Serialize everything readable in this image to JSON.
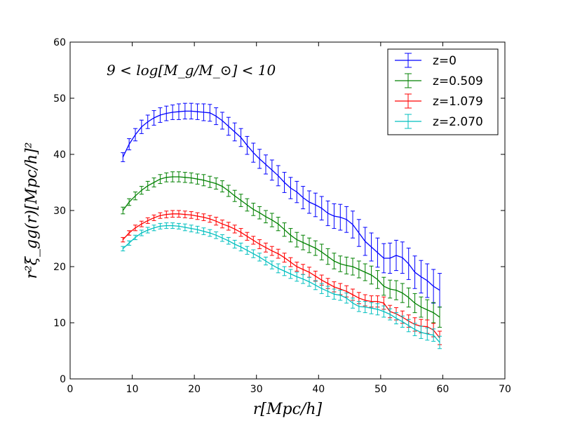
{
  "chart_data": {
    "type": "line",
    "annotation": "9 < log[M_g/M_⊙] < 10",
    "xlabel": "r[Mpc/h]",
    "ylabel": "r²ξ_gg(r)[Mpc/h]²",
    "xlim": [
      0,
      70
    ],
    "ylim": [
      0,
      60
    ],
    "xticks": [
      0,
      10,
      20,
      30,
      40,
      50,
      60,
      70
    ],
    "yticks": [
      0,
      10,
      20,
      30,
      40,
      50,
      60
    ],
    "grid": false,
    "legend_position": "top-right",
    "x": [
      8.5,
      9.5,
      10.5,
      11.5,
      12.5,
      13.5,
      14.5,
      15.5,
      16.5,
      17.5,
      18.5,
      19.5,
      20.5,
      21.5,
      22.5,
      23.5,
      24.5,
      25.5,
      26.5,
      27.5,
      28.5,
      29.5,
      30.5,
      31.5,
      32.5,
      33.5,
      34.5,
      35.5,
      36.5,
      37.5,
      38.5,
      39.5,
      40.5,
      41.5,
      42.5,
      43.5,
      44.5,
      45.5,
      46.5,
      47.5,
      48.5,
      49.5,
      50.5,
      51.5,
      52.5,
      53.5,
      54.5,
      55.5,
      56.5,
      57.5,
      58.5,
      59.5
    ],
    "series": [
      {
        "name": "z=0",
        "color": "#0000ff",
        "values": [
          39.5,
          41.8,
          43.5,
          44.9,
          45.8,
          46.5,
          47.0,
          47.3,
          47.5,
          47.6,
          47.7,
          47.7,
          47.6,
          47.5,
          47.4,
          46.8,
          46.0,
          45.0,
          44.0,
          43.0,
          41.6,
          40.3,
          39.2,
          38.2,
          37.2,
          36.2,
          35.0,
          34.0,
          33.3,
          32.3,
          31.5,
          31.0,
          30.4,
          29.5,
          29.0,
          28.8,
          28.4,
          27.5,
          26.0,
          24.5,
          23.5,
          22.5,
          21.5,
          21.5,
          22.0,
          21.6,
          20.5,
          19.0,
          18.2,
          17.5,
          16.5,
          15.8
        ],
        "errors": [
          0.8,
          1.0,
          1.1,
          1.2,
          1.2,
          1.3,
          1.3,
          1.3,
          1.3,
          1.4,
          1.4,
          1.4,
          1.4,
          1.5,
          1.5,
          1.5,
          1.5,
          1.6,
          1.6,
          1.6,
          1.6,
          1.7,
          1.7,
          1.7,
          1.8,
          1.8,
          1.8,
          1.9,
          1.9,
          2.0,
          2.0,
          2.1,
          2.1,
          2.2,
          2.2,
          2.3,
          2.3,
          2.4,
          2.4,
          2.5,
          2.5,
          2.6,
          2.6,
          2.7,
          2.7,
          2.8,
          2.8,
          2.9,
          2.9,
          3.0,
          3.0,
          3.0
        ]
      },
      {
        "name": "z=0.509",
        "color": "#008000",
        "values": [
          30.0,
          31.5,
          32.6,
          33.6,
          34.4,
          35.0,
          35.6,
          35.9,
          36.0,
          36.0,
          35.9,
          35.8,
          35.6,
          35.4,
          35.1,
          34.8,
          34.3,
          33.5,
          32.6,
          31.8,
          31.0,
          30.2,
          29.6,
          28.9,
          28.3,
          27.6,
          26.6,
          25.6,
          24.8,
          24.3,
          23.8,
          23.3,
          22.6,
          21.8,
          21.0,
          20.5,
          20.2,
          20.0,
          19.5,
          19.0,
          18.5,
          17.7,
          16.5,
          16.0,
          15.8,
          15.3,
          14.5,
          13.5,
          12.8,
          12.3,
          11.8,
          11.0
        ],
        "errors": [
          0.6,
          0.6,
          0.7,
          0.7,
          0.8,
          0.8,
          0.8,
          0.8,
          0.9,
          0.9,
          0.9,
          0.9,
          0.9,
          1.0,
          1.0,
          1.0,
          1.0,
          1.0,
          1.0,
          1.1,
          1.1,
          1.1,
          1.1,
          1.1,
          1.2,
          1.2,
          1.2,
          1.2,
          1.3,
          1.3,
          1.3,
          1.3,
          1.4,
          1.4,
          1.4,
          1.4,
          1.5,
          1.5,
          1.5,
          1.5,
          1.6,
          1.6,
          1.6,
          1.6,
          1.7,
          1.7,
          1.7,
          1.7,
          1.8,
          1.8,
          1.8,
          1.8
        ]
      },
      {
        "name": "z=1.079",
        "color": "#ff0000",
        "values": [
          24.8,
          26.0,
          26.9,
          27.6,
          28.2,
          28.7,
          29.1,
          29.3,
          29.4,
          29.4,
          29.3,
          29.2,
          29.0,
          28.8,
          28.5,
          28.1,
          27.6,
          27.2,
          26.7,
          26.1,
          25.4,
          24.7,
          24.0,
          23.4,
          22.8,
          22.3,
          21.6,
          20.8,
          20.0,
          19.5,
          19.0,
          18.3,
          17.6,
          17.0,
          16.4,
          16.0,
          15.6,
          15.0,
          14.4,
          14.0,
          13.8,
          13.8,
          13.5,
          12.0,
          11.6,
          11.0,
          10.3,
          9.7,
          9.4,
          9.3,
          8.7,
          7.3
        ],
        "errors": [
          0.4,
          0.4,
          0.5,
          0.5,
          0.5,
          0.5,
          0.5,
          0.6,
          0.6,
          0.6,
          0.6,
          0.6,
          0.6,
          0.6,
          0.6,
          0.7,
          0.7,
          0.7,
          0.7,
          0.7,
          0.7,
          0.7,
          0.8,
          0.8,
          0.8,
          0.8,
          0.8,
          0.8,
          0.8,
          0.9,
          0.9,
          0.9,
          0.9,
          0.9,
          0.9,
          1.0,
          1.0,
          1.0,
          1.0,
          1.0,
          1.0,
          1.0,
          1.1,
          1.1,
          1.1,
          1.1,
          1.1,
          1.2,
          1.2,
          1.2,
          1.2,
          1.2
        ]
      },
      {
        "name": "z=2.070",
        "color": "#00bfbf",
        "values": [
          23.2,
          24.2,
          25.2,
          26.0,
          26.5,
          26.9,
          27.2,
          27.3,
          27.3,
          27.2,
          27.0,
          26.8,
          26.6,
          26.3,
          26.0,
          25.6,
          25.1,
          24.6,
          24.0,
          23.5,
          22.9,
          22.3,
          21.7,
          21.0,
          20.3,
          19.7,
          19.2,
          18.7,
          18.2,
          17.8,
          17.3,
          16.7,
          16.1,
          15.6,
          15.1,
          14.9,
          14.4,
          13.5,
          12.9,
          12.8,
          12.6,
          12.4,
          12.0,
          11.5,
          10.8,
          10.2,
          9.5,
          8.8,
          8.3,
          8.0,
          7.8,
          6.5
        ],
        "errors": [
          0.4,
          0.4,
          0.4,
          0.5,
          0.5,
          0.5,
          0.5,
          0.5,
          0.5,
          0.5,
          0.6,
          0.6,
          0.6,
          0.6,
          0.6,
          0.6,
          0.6,
          0.6,
          0.7,
          0.7,
          0.7,
          0.7,
          0.7,
          0.7,
          0.7,
          0.8,
          0.8,
          0.8,
          0.8,
          0.8,
          0.8,
          0.8,
          0.9,
          0.9,
          0.9,
          0.9,
          0.9,
          0.9,
          0.9,
          1.0,
          1.0,
          1.0,
          1.0,
          1.0,
          1.0,
          1.0,
          1.1,
          1.1,
          1.1,
          1.1,
          1.1,
          1.1
        ]
      }
    ]
  }
}
